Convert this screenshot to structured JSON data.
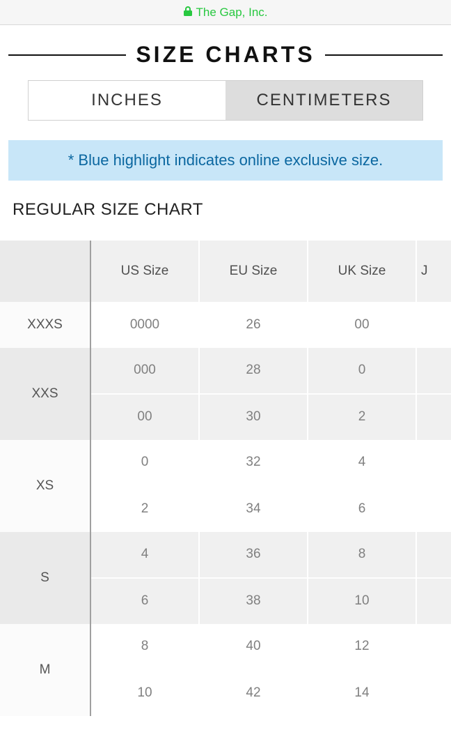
{
  "browser": {
    "site": "The Gap, Inc."
  },
  "header": {
    "title": "SIZE CHARTS"
  },
  "unit_tabs": {
    "active": "INCHES",
    "options": [
      "INCHES",
      "CENTIMETERS"
    ]
  },
  "note": "* Blue highlight indicates online exclusive size.",
  "section_title": "REGULAR SIZE CHART",
  "size_chart": {
    "columns": [
      "US Size",
      "EU Size",
      "UK Size"
    ],
    "partial_next_column_initial": "J",
    "groups": [
      {
        "label": "XXXS",
        "band": "light",
        "rows": [
          {
            "us": "0000",
            "eu": "26",
            "uk": "00"
          }
        ]
      },
      {
        "label": "XXS",
        "band": "dark",
        "rows": [
          {
            "us": "000",
            "eu": "28",
            "uk": "0"
          },
          {
            "us": "00",
            "eu": "30",
            "uk": "2"
          }
        ]
      },
      {
        "label": "XS",
        "band": "light",
        "rows": [
          {
            "us": "0",
            "eu": "32",
            "uk": "4"
          },
          {
            "us": "2",
            "eu": "34",
            "uk": "6"
          }
        ]
      },
      {
        "label": "S",
        "band": "dark",
        "rows": [
          {
            "us": "4",
            "eu": "36",
            "uk": "8"
          },
          {
            "us": "6",
            "eu": "38",
            "uk": "10"
          }
        ]
      },
      {
        "label": "M",
        "band": "light",
        "rows": [
          {
            "us": "8",
            "eu": "40",
            "uk": "12"
          },
          {
            "us": "10",
            "eu": "42",
            "uk": "14"
          }
        ]
      }
    ]
  },
  "colors": {
    "note_bg": "#c8e6f8",
    "note_text": "#0b67a0",
    "accent_green": "#28c840"
  }
}
